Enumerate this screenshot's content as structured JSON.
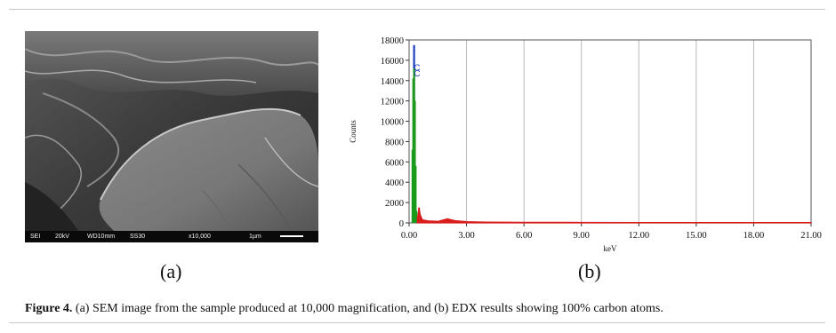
{
  "sem": {
    "info": {
      "mode": "SEI",
      "voltage": "20kV",
      "wd": "WD10mm",
      "ss": "SS30",
      "magnification": "x10,000",
      "scale": "1µm"
    }
  },
  "panels": {
    "a": "(a)",
    "b": "(b)"
  },
  "caption": {
    "label": "Figure 4.",
    "text": " (a) SEM image from the sample produced at 10,000 magnification, and (b) EDX results showing 100% carbon atoms."
  },
  "chart_data": {
    "type": "bar",
    "xlabel": "keV",
    "ylabel": "Counts",
    "xlim": [
      0,
      21
    ],
    "ylim": [
      0,
      18000
    ],
    "x_ticks": [
      "0.00",
      "3.00",
      "6.00",
      "9.00",
      "12.00",
      "15.00",
      "18.00",
      "21.00"
    ],
    "y_ticks": [
      "0",
      "2000",
      "4000",
      "6000",
      "8000",
      "10000",
      "12000",
      "14000",
      "16000",
      "18000"
    ],
    "grid": "vertical",
    "peak_labels": [
      {
        "text": "C",
        "x": 0.28,
        "y": 15000,
        "color": "#1f3fbf"
      },
      {
        "text": "C",
        "x": 0.28,
        "y": 14400,
        "color": "#1f3fbf"
      }
    ],
    "series": [
      {
        "color": "#1f3fbf",
        "points": [
          [
            0.26,
            17500
          ]
        ]
      },
      {
        "color": "#1a9a1a",
        "points": [
          [
            0.18,
            7200
          ],
          [
            0.22,
            14200
          ],
          [
            0.26,
            15200
          ],
          [
            0.3,
            12000
          ],
          [
            0.34,
            5600
          ],
          [
            0.38,
            1200
          ]
        ]
      },
      {
        "color": "#d81c1c",
        "points": [
          [
            0.45,
            600
          ],
          [
            0.52,
            1500
          ],
          [
            0.58,
            800
          ],
          [
            0.7,
            300
          ],
          [
            1.0,
            200
          ],
          [
            1.5,
            150
          ],
          [
            2.0,
            400
          ],
          [
            2.4,
            220
          ],
          [
            3.0,
            120
          ],
          [
            4.0,
            80
          ],
          [
            6.0,
            60
          ],
          [
            9.0,
            50
          ],
          [
            12.0,
            40
          ],
          [
            15.0,
            40
          ],
          [
            18.0,
            30
          ],
          [
            21.0,
            30
          ]
        ]
      }
    ]
  }
}
